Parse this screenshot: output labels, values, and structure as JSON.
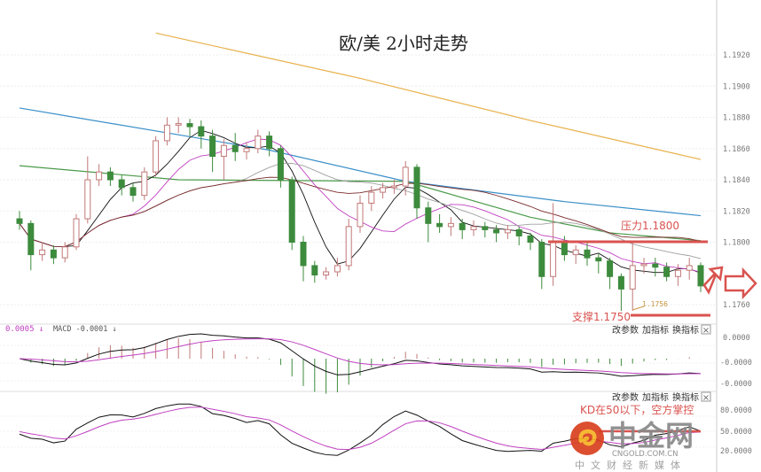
{
  "chart_data": {
    "type": "candlestick",
    "title": "欧/美 2小时走势",
    "y_ticks": [
      "1.1920",
      "1.1900",
      "1.1880",
      "1.1860",
      "1.1840",
      "1.1820",
      "1.1800",
      "1.1760"
    ],
    "ylim": [
      1.1745,
      1.1935
    ],
    "grid": true,
    "candles_ohlc": [
      [
        1.1815,
        1.182,
        1.1808,
        1.1812
      ],
      [
        1.1812,
        1.1814,
        1.1782,
        1.1792
      ],
      [
        1.1792,
        1.18,
        1.1788,
        1.1795
      ],
      [
        1.1795,
        1.1798,
        1.1786,
        1.179
      ],
      [
        1.179,
        1.18,
        1.1787,
        1.1797
      ],
      [
        1.1797,
        1.1818,
        1.1795,
        1.1815
      ],
      [
        1.1815,
        1.1855,
        1.1812,
        1.184
      ],
      [
        1.184,
        1.185,
        1.1836,
        1.1845
      ],
      [
        1.1845,
        1.1848,
        1.1836,
        1.184
      ],
      [
        1.184,
        1.1843,
        1.183,
        1.1835
      ],
      [
        1.1835,
        1.1838,
        1.1826,
        1.183
      ],
      [
        1.183,
        1.1848,
        1.1827,
        1.1845
      ],
      [
        1.1845,
        1.1868,
        1.1842,
        1.1865
      ],
      [
        1.1865,
        1.188,
        1.1862,
        1.1875
      ],
      [
        1.1875,
        1.188,
        1.187,
        1.1876
      ],
      [
        1.1876,
        1.1879,
        1.1868,
        1.1874
      ],
      [
        1.1874,
        1.1878,
        1.186,
        1.1868
      ],
      [
        1.1868,
        1.1872,
        1.1845,
        1.1855
      ],
      [
        1.1855,
        1.1866,
        1.184,
        1.1862
      ],
      [
        1.1862,
        1.187,
        1.1852,
        1.1858
      ],
      [
        1.1858,
        1.1864,
        1.1853,
        1.186
      ],
      [
        1.186,
        1.1872,
        1.1857,
        1.1868
      ],
      [
        1.1868,
        1.1871,
        1.1855,
        1.186
      ],
      [
        1.186,
        1.1862,
        1.1835,
        1.184
      ],
      [
        1.184,
        1.1842,
        1.1795,
        1.18
      ],
      [
        1.18,
        1.1804,
        1.1775,
        1.1785
      ],
      [
        1.1785,
        1.1788,
        1.1774,
        1.1779
      ],
      [
        1.1779,
        1.1784,
        1.1776,
        1.1781
      ],
      [
        1.1781,
        1.179,
        1.1778,
        1.1785
      ],
      [
        1.1785,
        1.1815,
        1.1782,
        1.181
      ],
      [
        1.181,
        1.183,
        1.1806,
        1.1825
      ],
      [
        1.1825,
        1.1836,
        1.182,
        1.1832
      ],
      [
        1.1832,
        1.1838,
        1.1828,
        1.1835
      ],
      [
        1.1835,
        1.184,
        1.1831,
        1.1836
      ],
      [
        1.1836,
        1.1852,
        1.183,
        1.1848
      ],
      [
        1.1848,
        1.185,
        1.1815,
        1.1822
      ],
      [
        1.1822,
        1.1826,
        1.18,
        1.1812
      ],
      [
        1.1812,
        1.1818,
        1.1806,
        1.181
      ],
      [
        1.181,
        1.1816,
        1.1804,
        1.1812
      ],
      [
        1.1812,
        1.1815,
        1.1802,
        1.1808
      ],
      [
        1.1808,
        1.1814,
        1.1804,
        1.181
      ],
      [
        1.181,
        1.1813,
        1.1803,
        1.1808
      ],
      [
        1.1808,
        1.1811,
        1.18,
        1.1806
      ],
      [
        1.1806,
        1.1811,
        1.1802,
        1.1808
      ],
      [
        1.1808,
        1.181,
        1.1798,
        1.1804
      ],
      [
        1.1804,
        1.1806,
        1.1795,
        1.18
      ],
      [
        1.18,
        1.1802,
        1.177,
        1.1778
      ],
      [
        1.1778,
        1.1825,
        1.1772,
        1.18
      ],
      [
        1.18,
        1.1804,
        1.1788,
        1.1792
      ],
      [
        1.1792,
        1.1798,
        1.1786,
        1.1795
      ],
      [
        1.1795,
        1.18,
        1.1785,
        1.179
      ],
      [
        1.179,
        1.1793,
        1.178,
        1.1788
      ],
      [
        1.1788,
        1.179,
        1.177,
        1.1778
      ],
      [
        1.1778,
        1.178,
        1.1756,
        1.177
      ],
      [
        1.177,
        1.18,
        1.1756,
        1.1785
      ],
      [
        1.1785,
        1.179,
        1.178,
        1.1786
      ],
      [
        1.1786,
        1.179,
        1.1778,
        1.1784
      ],
      [
        1.1784,
        1.1787,
        1.1775,
        1.1778
      ],
      [
        1.1778,
        1.1786,
        1.1772,
        1.1782
      ],
      [
        1.1782,
        1.179,
        1.1776,
        1.1785
      ],
      [
        1.1785,
        1.1787,
        1.1768,
        1.1772
      ]
    ],
    "long_moving_averages": [
      {
        "color": "#e8b04a",
        "points": [
          [
            12,
            1.1934
          ],
          [
            30,
            1.1905
          ],
          [
            45,
            1.1878
          ],
          [
            60,
            1.1853
          ]
        ]
      },
      {
        "color": "#3a8fc8",
        "points": [
          [
            0,
            1.1886
          ],
          [
            22,
            1.1859
          ],
          [
            34,
            1.1839
          ],
          [
            48,
            1.1826
          ],
          [
            60,
            1.1817
          ]
        ]
      },
      {
        "color": "#4a9a4a",
        "points": [
          [
            0,
            1.1849
          ],
          [
            14,
            1.184
          ],
          [
            34,
            1.1839
          ],
          [
            45,
            1.1816
          ],
          [
            52,
            1.1806
          ],
          [
            60,
            1.1801
          ]
        ]
      }
    ],
    "short_moving_averages": [
      {
        "period": 5,
        "color": "#111111"
      },
      {
        "period": 10,
        "color": "#c040c0"
      },
      {
        "period": 20,
        "color": "#a0a0a0"
      },
      {
        "period": 30,
        "color": "#7a2a2a"
      }
    ],
    "colors": {
      "up": "#c27878",
      "down": "#3d8b3d",
      "annotation": "#d9534f"
    },
    "annotations": {
      "resistance_label": "压力1.1800",
      "resistance_value": 1.18,
      "support_label": "支撑1.1750",
      "support_value": 1.175,
      "low_marker": "1.1756"
    },
    "macd": {
      "label_prefix": "0.0005 ↓",
      "label": "MACD -0.0001 ↓",
      "y_ticks": [
        "0.0000",
        "-0.0000",
        "-0.0000"
      ]
    },
    "kd": {
      "annotation": "KD在50以下，空方掌控",
      "annotation_value": 50,
      "y_ticks": [
        "80.0000",
        "50.0000",
        "20.0000"
      ],
      "ylim": [
        0,
        100
      ]
    }
  },
  "toolbar": {
    "edit_params": "改参数",
    "add_indicator": "加指标",
    "switch_indicator": "换指标",
    "close": "×"
  },
  "watermark": {
    "brand": "中金网",
    "domain": "CNGOLD.COM.CN",
    "slogan": "中文财经新媒体"
  }
}
